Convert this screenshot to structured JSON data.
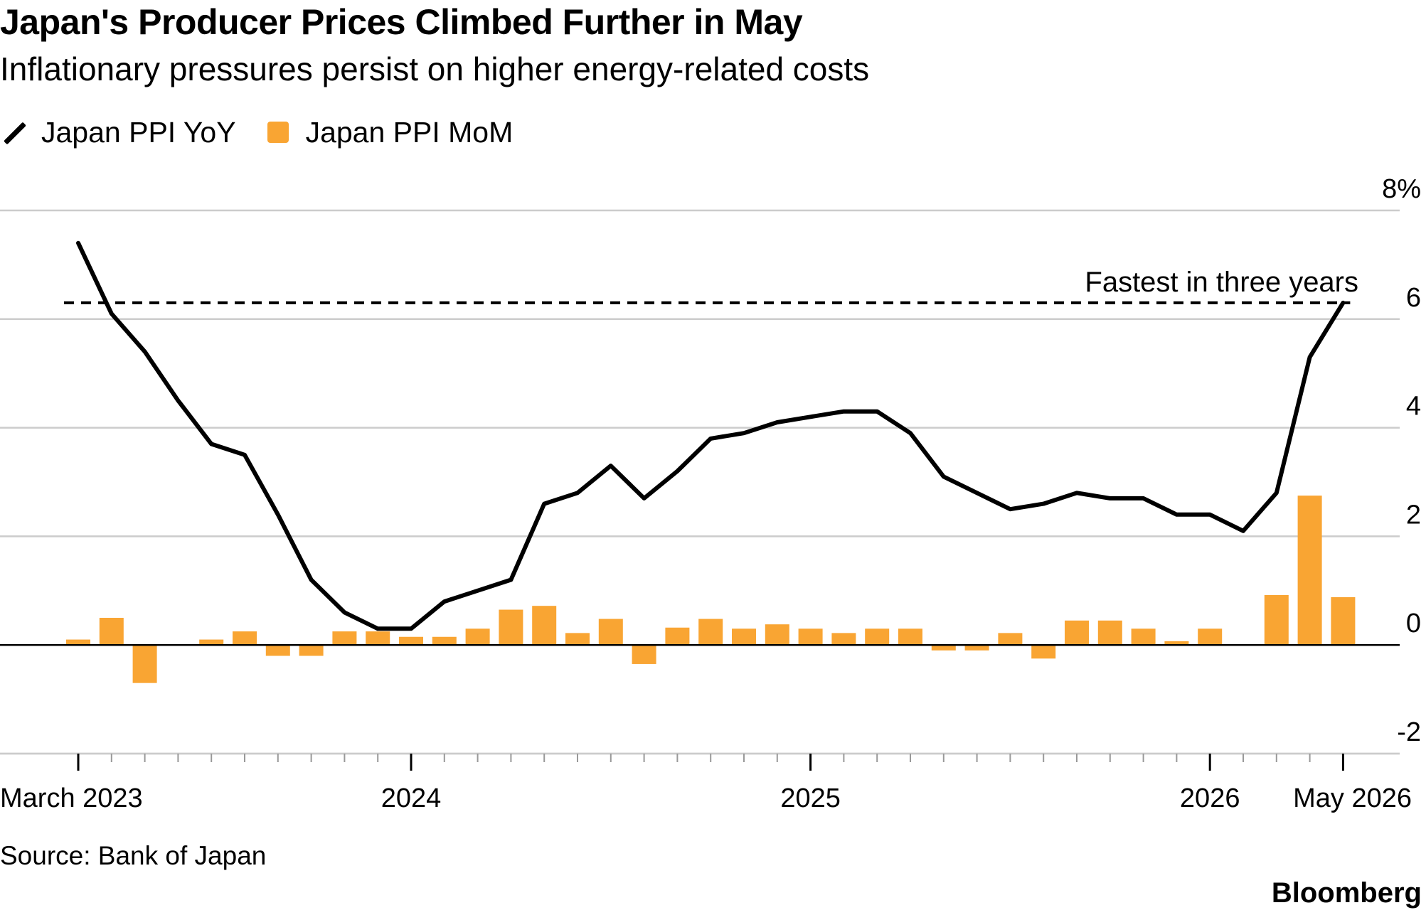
{
  "title": "Japan's Producer Prices Climbed Further in May",
  "subtitle": "Inflationary pressures persist on higher energy-related costs",
  "legend": {
    "line_label": "Japan PPI YoY",
    "bar_label": "Japan PPI MoM"
  },
  "source": "Source: Bank of Japan",
  "brand": "Bloomberg",
  "colors": {
    "line": "#000000",
    "bars": "#f9a533",
    "grid": "#cccccc",
    "axis": "#000000"
  },
  "chart_data": {
    "type": "bar",
    "x_start": "March 2023",
    "x_end": "May 2026",
    "x_frequency": "monthly",
    "ylim": [
      -2,
      8
    ],
    "y_ticks": [
      "8%",
      "6",
      "4",
      "2",
      "0",
      "-2"
    ],
    "y_tick_values": [
      8,
      6,
      4,
      2,
      0,
      -2
    ],
    "x_tick_labels": [
      {
        "label": "March 2023",
        "index": 0
      },
      {
        "label": "2024",
        "index": 10
      },
      {
        "label": "2025",
        "index": 22
      },
      {
        "label": "2026",
        "index": 34
      },
      {
        "label": "May 2026",
        "index": 38
      }
    ],
    "grid": true,
    "legend_position": "top-left",
    "series": [
      {
        "name": "Japan PPI YoY",
        "type": "line",
        "values": [
          7.4,
          6.1,
          5.4,
          4.5,
          3.7,
          3.5,
          2.4,
          1.2,
          0.6,
          0.3,
          0.3,
          0.8,
          1.0,
          1.2,
          2.6,
          2.8,
          3.3,
          2.7,
          3.2,
          3.8,
          3.9,
          4.1,
          4.2,
          4.3,
          4.3,
          3.9,
          3.1,
          2.8,
          2.5,
          2.6,
          2.8,
          2.7,
          2.7,
          2.4,
          2.4,
          2.1,
          2.8,
          5.3,
          6.3
        ]
      },
      {
        "name": "Japan PPI MoM",
        "type": "bar",
        "values": [
          0.1,
          0.5,
          -0.7,
          null,
          0.1,
          0.25,
          -0.2,
          -0.2,
          0.25,
          0.25,
          0.15,
          0.15,
          0.3,
          0.65,
          0.72,
          0.22,
          0.48,
          -0.35,
          0.32,
          0.48,
          0.3,
          0.38,
          0.3,
          0.22,
          0.3,
          0.3,
          -0.1,
          -0.1,
          0.22,
          -0.25,
          0.45,
          0.45,
          0.3,
          0.07,
          0.3,
          null,
          0.92,
          2.75,
          0.88
        ]
      }
    ],
    "annotations": [
      {
        "text": "Fastest in three years",
        "type": "dashed-reference-line",
        "y": 6.3
      }
    ]
  }
}
